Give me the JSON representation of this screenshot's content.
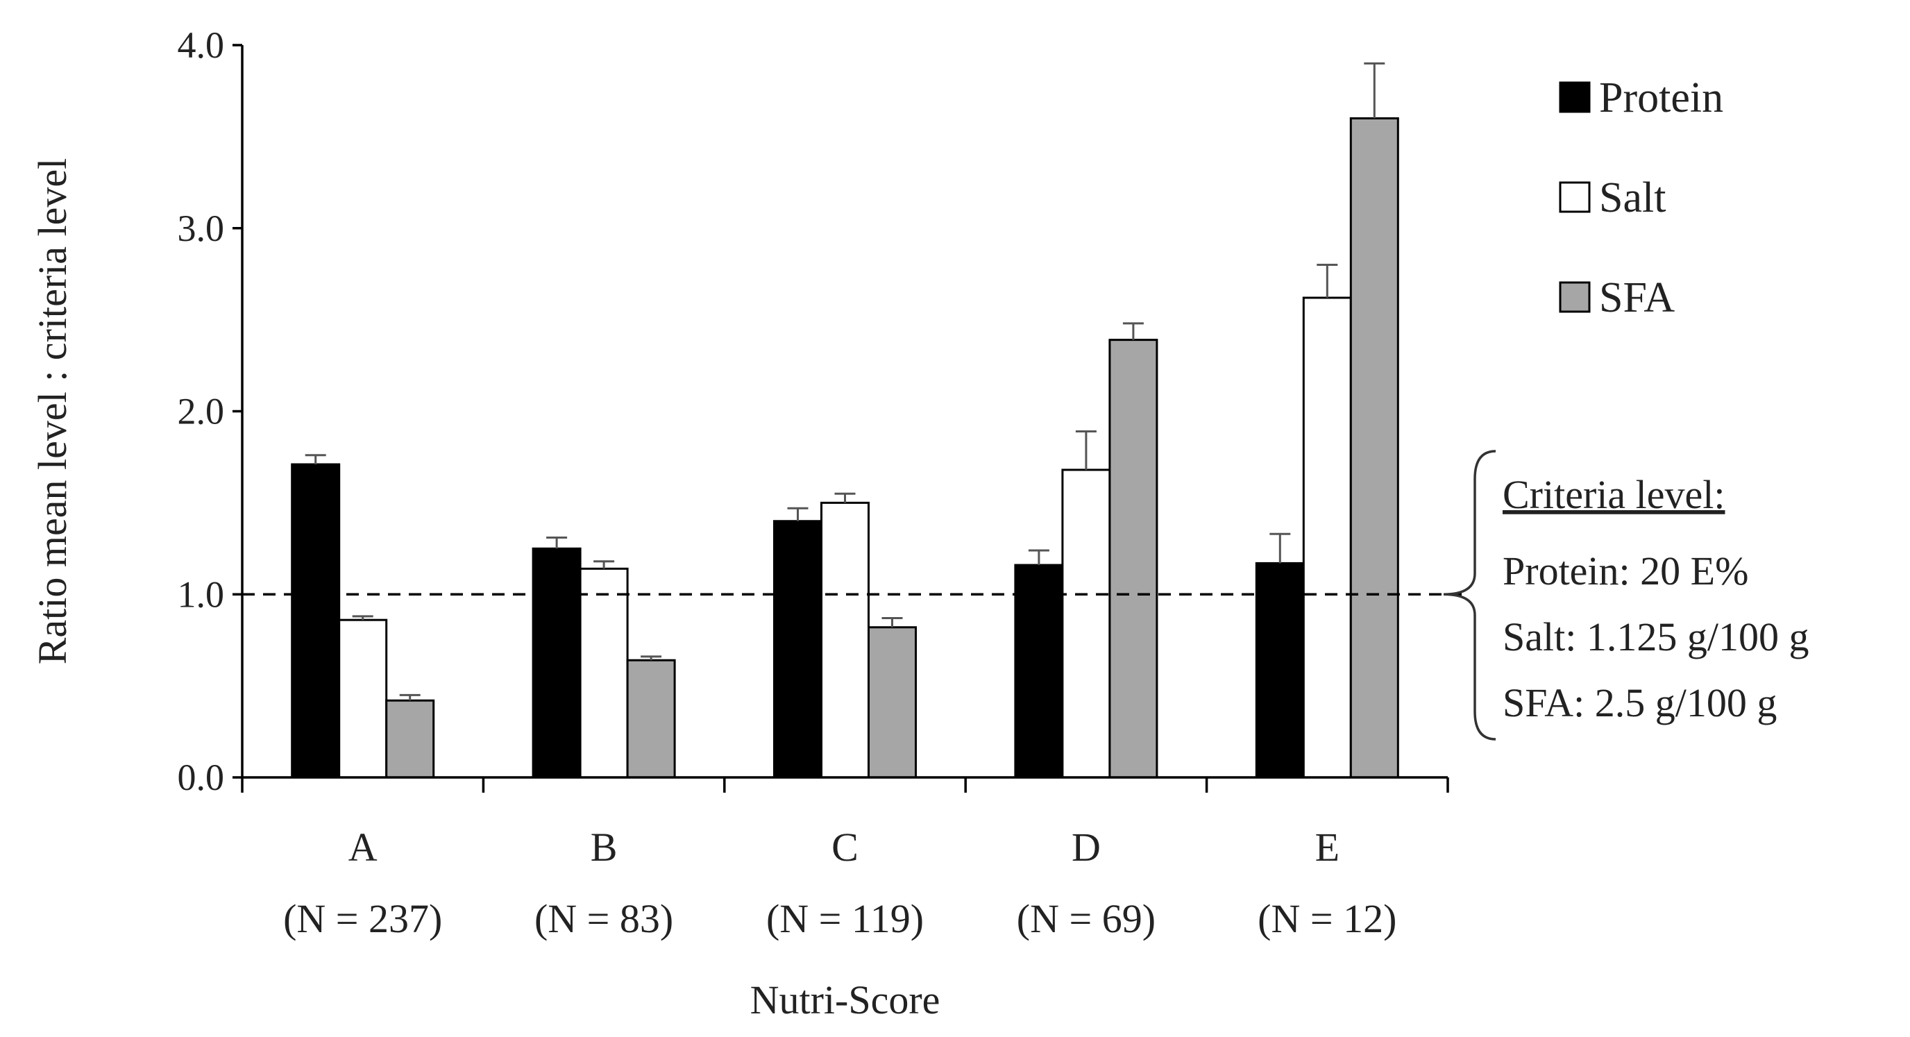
{
  "chart_data": {
    "type": "bar",
    "title": "",
    "xlabel": "Nutri-Score",
    "ylabel": "Ratio mean level : criteria level",
    "ylim": [
      0,
      4
    ],
    "yticks": [
      "0.0",
      "1.0",
      "2.0",
      "3.0",
      "4.0"
    ],
    "categories": [
      "A",
      "B",
      "C",
      "D",
      "E"
    ],
    "category_counts": [
      "(N = 237)",
      "(N = 83)",
      "(N = 119)",
      "(N = 69)",
      "(N = 12)"
    ],
    "series": [
      {
        "name": "Protein",
        "color": "#000000",
        "values": [
          1.71,
          1.25,
          1.4,
          1.16,
          1.17
        ],
        "errors": [
          0.05,
          0.06,
          0.07,
          0.08,
          0.16
        ]
      },
      {
        "name": "Salt",
        "color": "#ffffff",
        "values": [
          0.86,
          1.14,
          1.5,
          1.68,
          2.62
        ],
        "errors": [
          0.02,
          0.04,
          0.05,
          0.21,
          0.18
        ]
      },
      {
        "name": "SFA",
        "color": "#a6a6a6",
        "values": [
          0.42,
          0.64,
          0.82,
          2.39,
          3.6
        ],
        "errors": [
          0.03,
          0.02,
          0.05,
          0.09,
          0.3
        ]
      }
    ],
    "reference_line": {
      "value": 1.0,
      "style": "dashed"
    },
    "legend": {
      "position": "top-right",
      "labels": [
        "Protein",
        "Salt",
        "SFA"
      ]
    },
    "annotation": {
      "title": "Criteria level:",
      "lines": [
        "Protein: 20 E%",
        "Salt: 1.125 g/100 g",
        "SFA: 2.5 g/100 g"
      ]
    }
  }
}
